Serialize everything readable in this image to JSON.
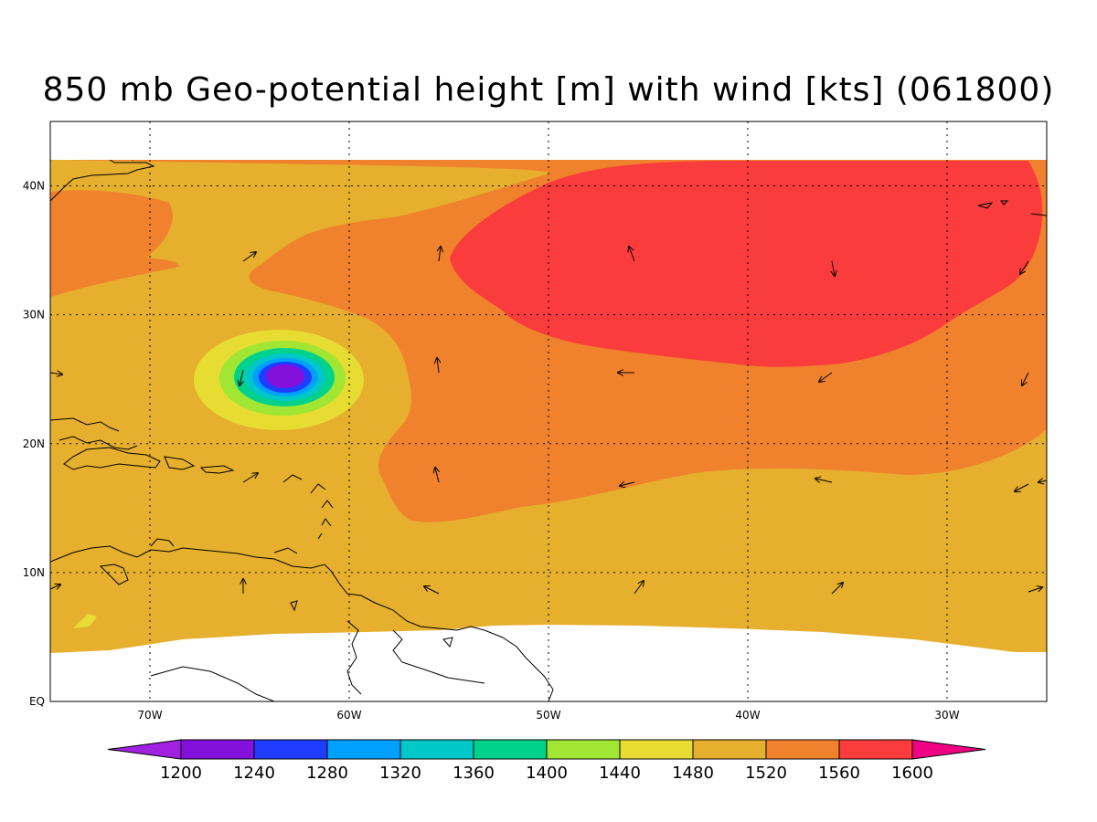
{
  "title": "850 mb Geo-potential height [m] with wind [kts] (061800)",
  "map": {
    "lon_range": [
      -75,
      -25
    ],
    "lat_range": [
      0,
      45
    ],
    "lon_ticks": [
      {
        "value": -70,
        "label": "70W"
      },
      {
        "value": -60,
        "label": "60W"
      },
      {
        "value": -50,
        "label": "50W"
      },
      {
        "value": -40,
        "label": "40W"
      },
      {
        "value": -30,
        "label": "30W"
      }
    ],
    "lat_ticks": [
      {
        "value": 0,
        "label": "EQ"
      },
      {
        "value": 10,
        "label": "10N"
      },
      {
        "value": 20,
        "label": "20N"
      },
      {
        "value": 30,
        "label": "30N"
      },
      {
        "value": 40,
        "label": "40N"
      }
    ],
    "grid": "dotted",
    "storm_center": {
      "lon": -63,
      "lat": 25
    }
  },
  "colorbar": {
    "levels": [
      "1200",
      "1240",
      "1280",
      "1320",
      "1360",
      "1400",
      "1440",
      "1480",
      "1520",
      "1560",
      "1600"
    ],
    "colors": [
      "#a021e0",
      "#8410dc",
      "#1f3cff",
      "#00a0ff",
      "#00c8c8",
      "#00d28c",
      "#a0e632",
      "#e6dc32",
      "#e6af2d",
      "#f0822d",
      "#fa3c3c",
      "#f00082"
    ]
  }
}
